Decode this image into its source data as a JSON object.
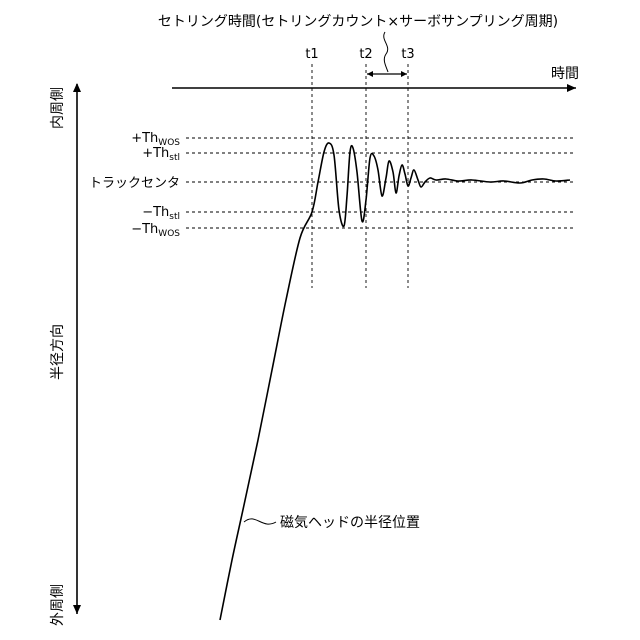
{
  "title": "セトリング時間(セトリングカウント×サーボサンプリング周期)",
  "time_axis_label": "時間",
  "radial_axis": {
    "top_label": "内周側",
    "middle_label": "半径方向",
    "bottom_label": "外周側"
  },
  "thresholds": {
    "plus_wos": {
      "sign": "+",
      "base": "Th",
      "sub": "WOS"
    },
    "plus_stl": {
      "sign": "+",
      "base": "Th",
      "sub": "stl"
    },
    "center": "トラックセンタ",
    "minus_stl": {
      "sign": "−",
      "base": "Th",
      "sub": "stl"
    },
    "minus_wos": {
      "sign": "−",
      "base": "Th",
      "sub": "WOS"
    }
  },
  "time_markers": [
    "t1",
    "t2",
    "t3"
  ],
  "curve_label": "磁気ヘッドの半径位置"
}
